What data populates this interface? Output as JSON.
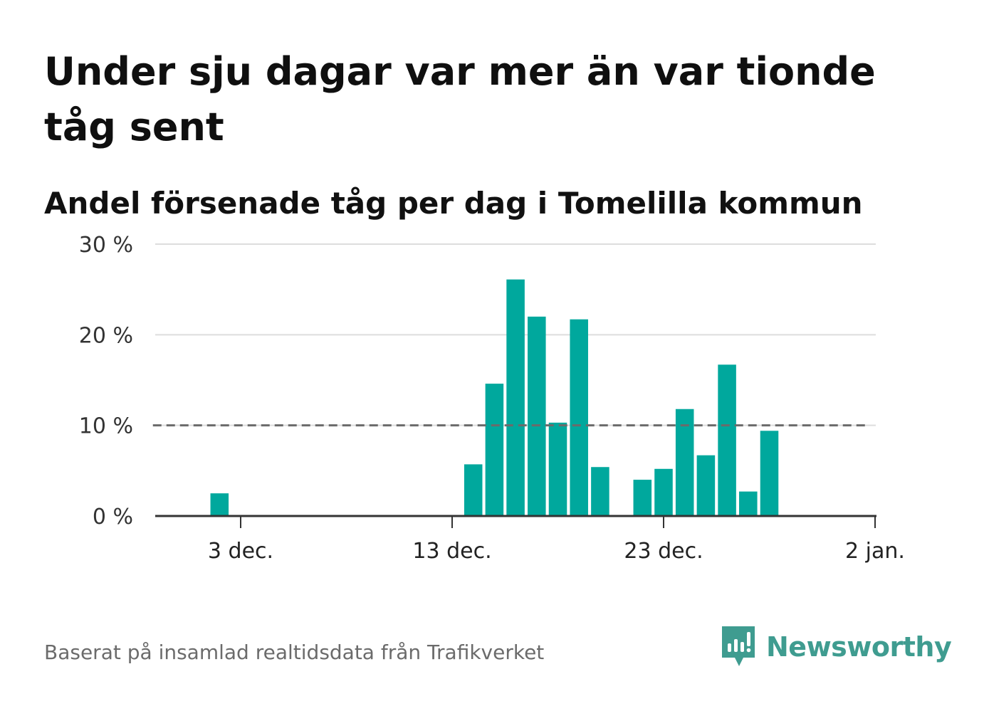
{
  "title": "Under sju dagar var mer än var tionde tåg sent",
  "subtitle": "Andel försenade tåg per dag i Tomelilla kommun",
  "source": "Baserat på insamlad realtidsdata från Trafikverket",
  "brand": {
    "name": "Newsworthy",
    "icon": "newsworthy-logo-icon"
  },
  "colors": {
    "bar": "#00a89d",
    "reference_line": "#6b6b6b",
    "grid": "#dddddd",
    "axis": "#333333",
    "brand": "#3f9c90"
  },
  "chart_data": {
    "type": "bar",
    "title": "Andel försenade tåg per dag i Tomelilla kommun",
    "xlabel": "",
    "ylabel": "",
    "y_unit": "%",
    "ylim": [
      0,
      30
    ],
    "yticks": [
      0,
      10,
      20,
      30
    ],
    "ytick_labels": [
      "0 %",
      "10 %",
      "20 %",
      "30 %"
    ],
    "xlim": [
      "2023-11-29",
      "2024-01-02"
    ],
    "xticks": [
      "2023-12-03",
      "2023-12-13",
      "2023-12-23",
      "2024-01-02"
    ],
    "xtick_labels": [
      "3 dec.",
      "13 dec.",
      "23 dec.",
      "2 jan."
    ],
    "grid": true,
    "reference_line": {
      "value": 10,
      "style": "dashed",
      "from": "2023-11-30",
      "to": "2024-01-01"
    },
    "x": [
      "2023-11-30",
      "2023-12-01",
      "2023-12-02",
      "2023-12-03",
      "2023-12-04",
      "2023-12-05",
      "2023-12-06",
      "2023-12-07",
      "2023-12-08",
      "2023-12-09",
      "2023-12-10",
      "2023-12-11",
      "2023-12-12",
      "2023-12-13",
      "2023-12-14",
      "2023-12-15",
      "2023-12-16",
      "2023-12-17",
      "2023-12-18",
      "2023-12-19",
      "2023-12-20",
      "2023-12-21",
      "2023-12-22",
      "2023-12-23",
      "2023-12-24",
      "2023-12-25",
      "2023-12-26",
      "2023-12-27",
      "2023-12-28",
      "2023-12-29",
      "2023-12-30",
      "2023-12-31",
      "2024-01-01"
    ],
    "values": [
      0,
      0,
      2.5,
      0,
      0,
      0,
      0,
      0,
      0,
      0,
      0,
      0,
      0,
      0,
      5.7,
      14.6,
      26.1,
      22.0,
      10.3,
      21.7,
      5.4,
      0,
      4.0,
      5.2,
      11.8,
      6.7,
      16.7,
      2.7,
      9.4,
      0,
      0,
      0,
      0
    ]
  }
}
